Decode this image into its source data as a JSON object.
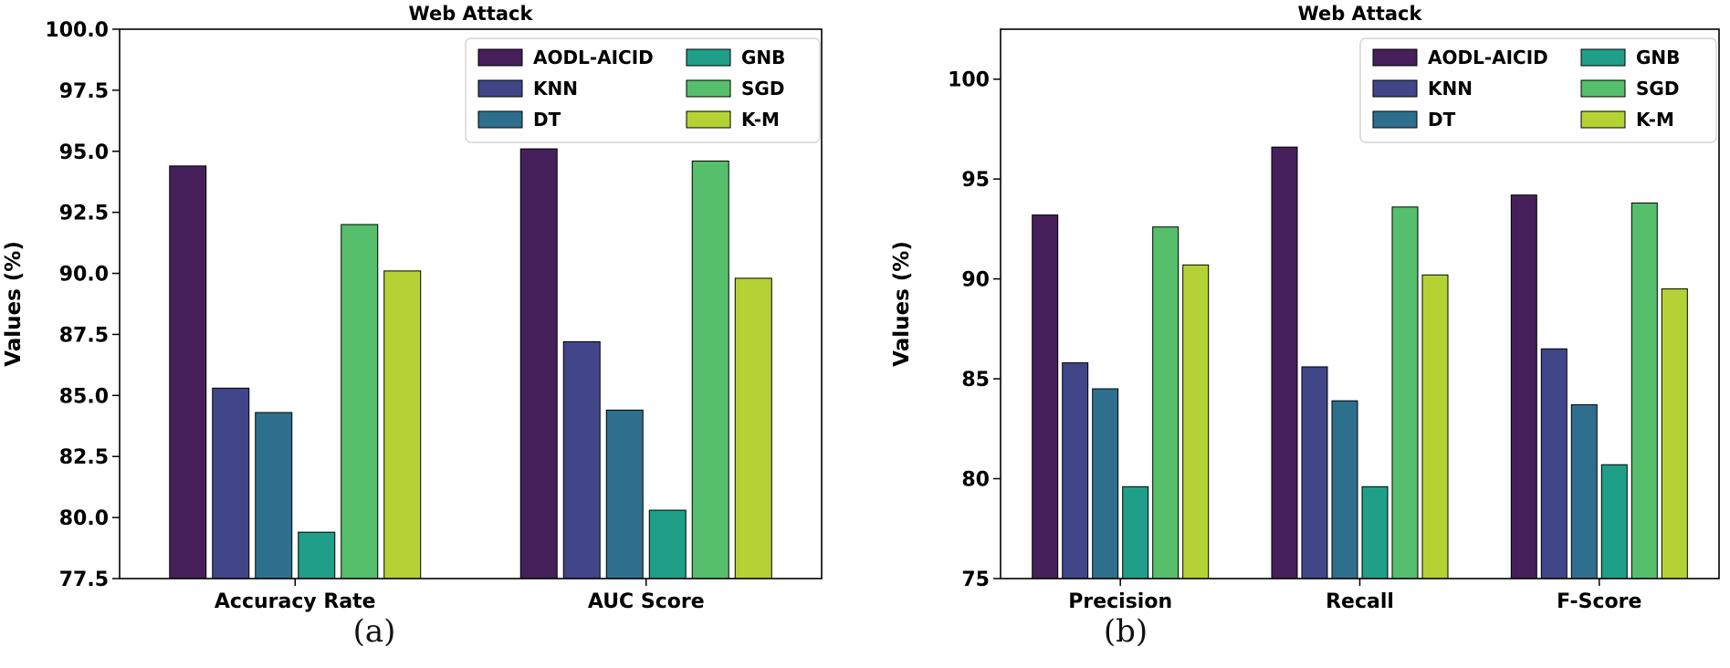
{
  "colors": {
    "AODL-AICID": "#45205a",
    "KNN": "#404688",
    "DT": "#2e6f8e",
    "GNB": "#1f9f88",
    "SGD": "#55bf6b",
    "K-M": "#b5d234"
  },
  "chart_data": [
    {
      "type": "bar",
      "title": "Web Attack",
      "xlabel": "",
      "ylabel": "Values (%)",
      "caption": "(a)",
      "categories": [
        "Accuracy Rate",
        "AUC Score"
      ],
      "ylim": [
        77.5,
        100.0
      ],
      "yticks": [
        77.5,
        80.0,
        82.5,
        85.0,
        87.5,
        90.0,
        92.5,
        95.0,
        97.5,
        100.0
      ],
      "ytick_labels": [
        "77.5",
        "80.0",
        "82.5",
        "85.0",
        "87.5",
        "90.0",
        "92.5",
        "95.0",
        "97.5",
        "100.0"
      ],
      "legend_position": "top-right",
      "legend_columns": 2,
      "series": [
        {
          "name": "AODL-AICID",
          "values": [
            94.4,
            95.1
          ]
        },
        {
          "name": "KNN",
          "values": [
            85.3,
            87.2
          ]
        },
        {
          "name": "DT",
          "values": [
            84.3,
            84.4
          ]
        },
        {
          "name": "GNB",
          "values": [
            79.4,
            80.3
          ]
        },
        {
          "name": "SGD",
          "values": [
            92.0,
            94.6
          ]
        },
        {
          "name": "K-M",
          "values": [
            90.1,
            89.8
          ]
        }
      ]
    },
    {
      "type": "bar",
      "title": "Web Attack",
      "xlabel": "",
      "ylabel": "Values (%)",
      "caption": "(b)",
      "categories": [
        "Precision",
        "Recall",
        "F-Score"
      ],
      "ylim": [
        75,
        102.5
      ],
      "yticks": [
        75,
        80,
        85,
        90,
        95,
        100
      ],
      "ytick_labels": [
        "75",
        "80",
        "85",
        "90",
        "95",
        "100"
      ],
      "legend_position": "top-right",
      "legend_columns": 2,
      "series": [
        {
          "name": "AODL-AICID",
          "values": [
            93.2,
            96.6,
            94.2
          ]
        },
        {
          "name": "KNN",
          "values": [
            85.8,
            85.6,
            86.5
          ]
        },
        {
          "name": "DT",
          "values": [
            84.5,
            83.9,
            83.7
          ]
        },
        {
          "name": "GNB",
          "values": [
            79.6,
            79.6,
            80.7
          ]
        },
        {
          "name": "SGD",
          "values": [
            92.6,
            93.6,
            93.8
          ]
        },
        {
          "name": "K-M",
          "values": [
            90.7,
            90.2,
            89.5
          ]
        }
      ]
    }
  ]
}
